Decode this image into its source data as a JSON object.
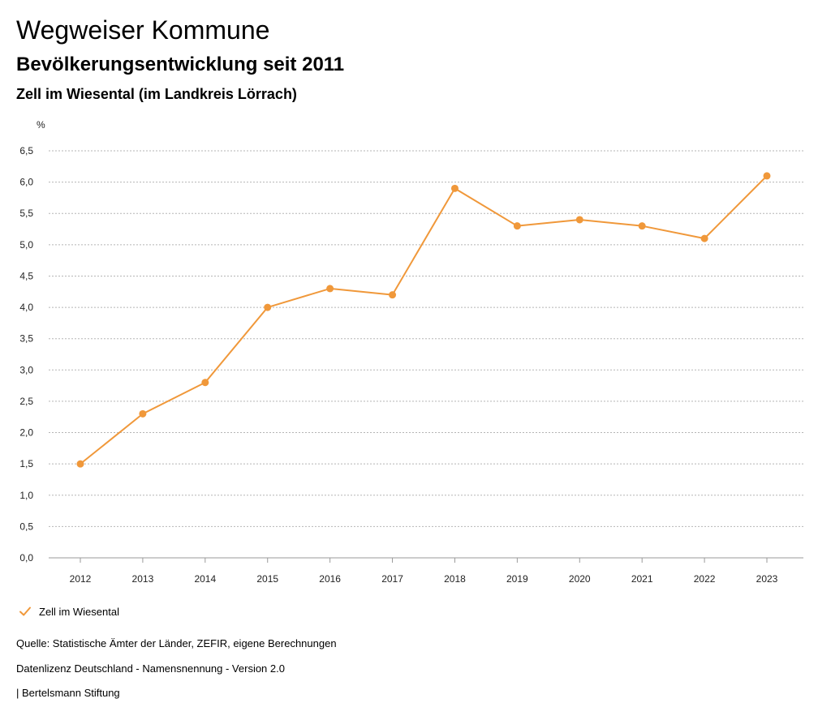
{
  "header": {
    "title": "Wegweiser Kommune",
    "subtitle": "Bevölkerungsentwicklung seit 2011",
    "region": "Zell im Wiesental (im Landkreis Lörrach)"
  },
  "chart_data": {
    "type": "line",
    "title": "Bevölkerungsentwicklung seit 2011",
    "subtitle": "Zell im Wiesental (im Landkreis Lörrach)",
    "xlabel": "",
    "ylabel": "%",
    "categories": [
      "2012",
      "2013",
      "2014",
      "2015",
      "2016",
      "2017",
      "2018",
      "2019",
      "2020",
      "2021",
      "2022",
      "2023"
    ],
    "series": [
      {
        "name": "Zell im Wiesental",
        "color": "#f0983a",
        "values": [
          1.5,
          2.3,
          2.8,
          4.0,
          4.3,
          4.2,
          5.9,
          5.3,
          5.4,
          5.3,
          5.1,
          6.1
        ]
      }
    ],
    "ylim": [
      0,
      6.5
    ],
    "yticks": [
      "0,0",
      "0,5",
      "1,0",
      "1,5",
      "2,0",
      "2,5",
      "3,0",
      "3,5",
      "4,0",
      "4,5",
      "5,0",
      "5,5",
      "6,0",
      "6,5"
    ],
    "grid": true,
    "legend_position": "bottom-left"
  },
  "legend": {
    "label": "Zell im Wiesental"
  },
  "footer": {
    "source": "Quelle: Statistische Ämter der Länder, ZEFIR, eigene Berechnungen",
    "license": "Datenlizenz Deutschland - Namensnennung - Version 2.0",
    "publisher": "| Bertelsmann Stiftung"
  }
}
